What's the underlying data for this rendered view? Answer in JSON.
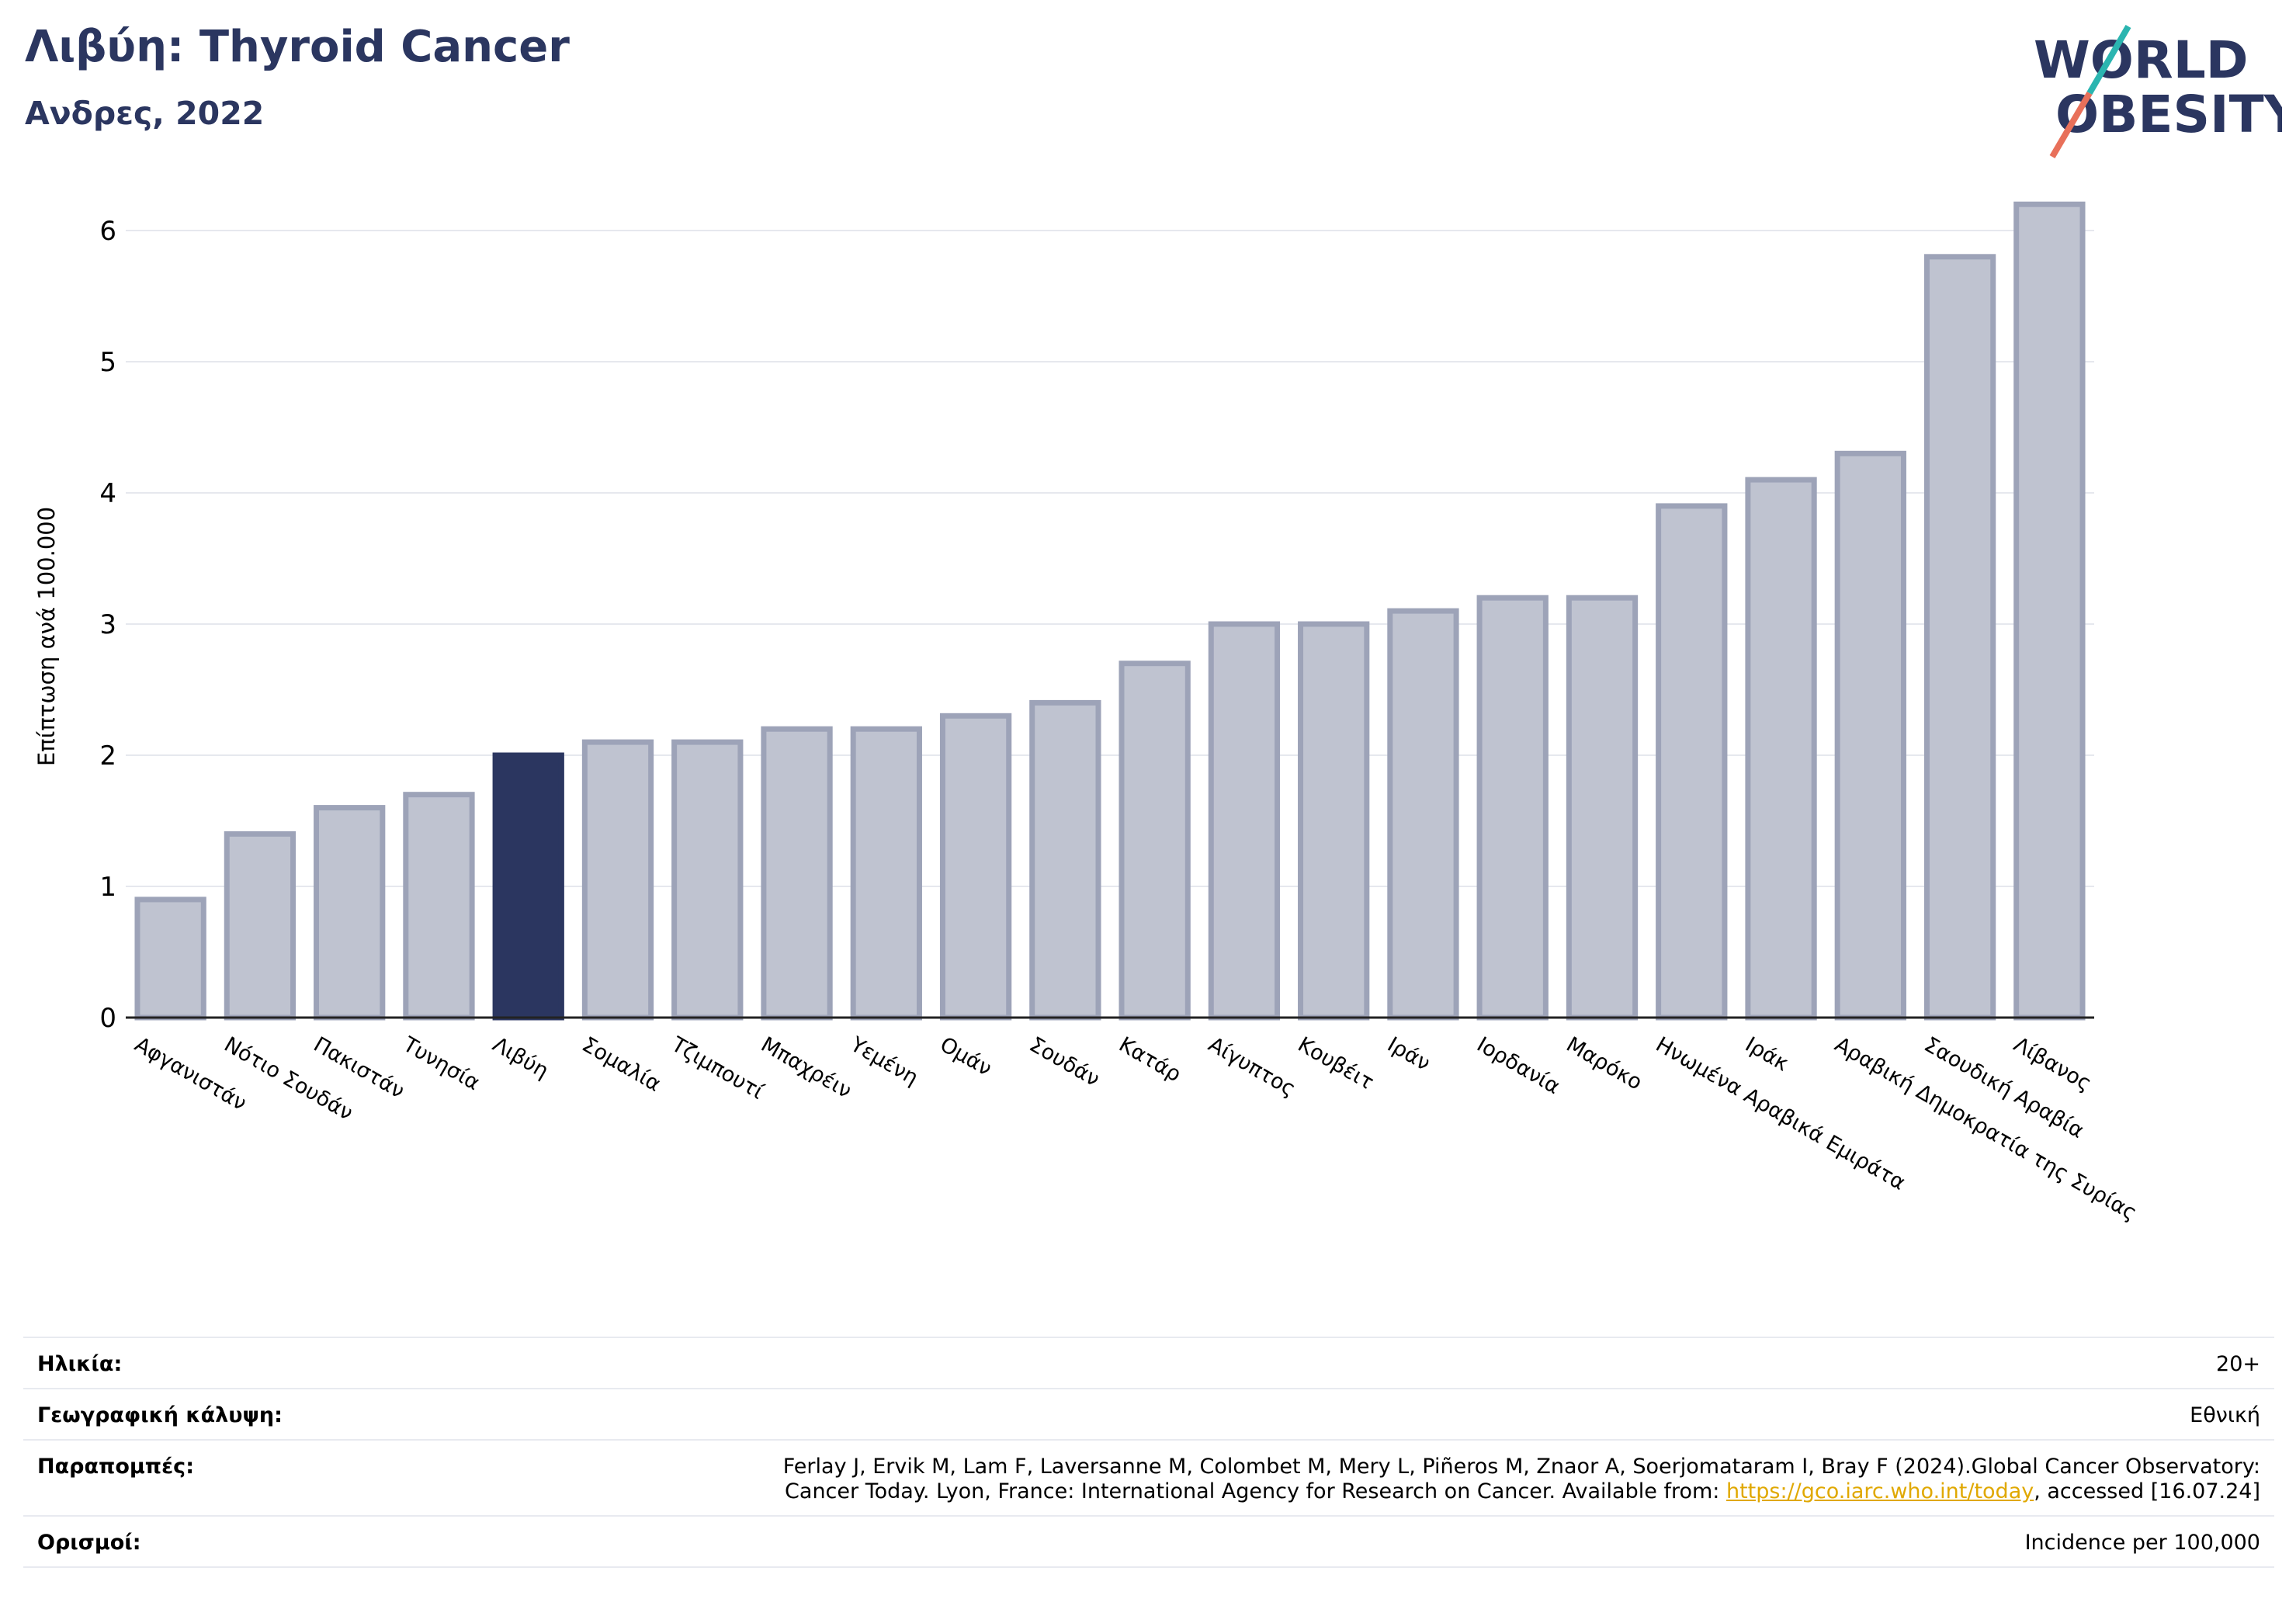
{
  "header": {
    "title": "Λιβύη: Thyroid Cancer",
    "subtitle": "Ανδρες, 2022"
  },
  "logo": {
    "line1": "WORLD",
    "line2": "OBESITY"
  },
  "colors": {
    "highlight": "#2b3660",
    "bar": "#bfc3d0",
    "bar_border": "#9da3b8",
    "accent_teal": "#2bb5b0",
    "accent_coral": "#e8705a"
  },
  "chart_data": {
    "type": "bar",
    "ylabel": "Επίπτωση ανά 100.000",
    "ylim": [
      0,
      6.3
    ],
    "yticks": [
      0,
      1,
      2,
      3,
      4,
      5,
      6
    ],
    "grid": true,
    "highlight": "Λιβύη",
    "categories": [
      "Αφγανιστάν",
      "Νότιο Σουδάν",
      "Πακιστάν",
      "Τυνησία",
      "Λιβύη",
      "Σομαλία",
      "Τζιμπουτί",
      "Μπαχρέιν",
      "Υεμένη",
      "Ομάν",
      "Σουδάν",
      "Κατάρ",
      "Αίγυπτος",
      "Κουβέιτ",
      "Ιράν",
      "Ιορδανία",
      "Μαρόκο",
      "Ηνωμένα Αραβικά Εμιράτα",
      "Ιράκ",
      "Αραβική Δημοκρατία της Συρίας",
      "Σαουδική Αραβία",
      "Λίβανος"
    ],
    "values": [
      0.9,
      1.4,
      1.6,
      1.7,
      2.0,
      2.1,
      2.1,
      2.2,
      2.2,
      2.3,
      2.4,
      2.7,
      3.0,
      3.0,
      3.1,
      3.2,
      3.2,
      3.9,
      4.1,
      4.3,
      5.8,
      6.2
    ]
  },
  "meta": {
    "age_label": "Ηλικία:",
    "age_value": "20+",
    "coverage_label": "Γεωγραφική κάλυψη:",
    "coverage_value": "Εθνική",
    "refs_label": "Παραπομπές:",
    "refs_line1": "Ferlay J, Ervik M, Lam F, Laversanne M, Colombet M, Mery L, Piñeros M, Znaor A, Soerjomataram I, Bray F (2024).Global Cancer Observatory:",
    "refs_line2_pre": "Cancer Today. Lyon, France: International Agency for Research on Cancer. Available from: ",
    "refs_link": "https://gco.iarc.who.int/today",
    "refs_line2_post": ", accessed [16.07.24]",
    "defs_label": "Ορισμοί:",
    "defs_value": "Incidence per 100,000"
  }
}
